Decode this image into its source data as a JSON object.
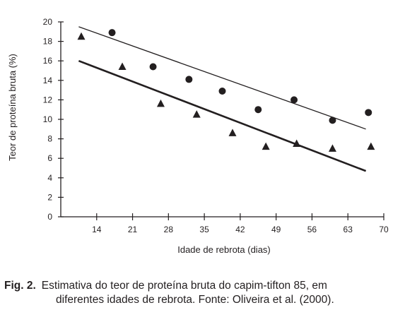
{
  "chart_data": {
    "type": "scatter",
    "xlabel": "Idade de rebrota (dias)",
    "ylabel": "Teor de proteína bruta (%)",
    "xlim": [
      7,
      70
    ],
    "ylim": [
      0,
      20
    ],
    "xticks": [
      14,
      21,
      28,
      35,
      42,
      49,
      56,
      63,
      70
    ],
    "yticks": [
      0,
      2,
      4,
      6,
      8,
      10,
      12,
      14,
      16,
      18,
      20
    ],
    "grid": false,
    "series": [
      {
        "marker": "circle",
        "points": [
          [
            17,
            18.9
          ],
          [
            25,
            15.4
          ],
          [
            32,
            14.1
          ],
          [
            38.5,
            12.9
          ],
          [
            45.5,
            11.0
          ],
          [
            52.5,
            12.0
          ],
          [
            60,
            9.9
          ],
          [
            67,
            10.7
          ]
        ],
        "trend": [
          [
            10.5,
            19.5
          ],
          [
            66.5,
            9.0
          ]
        ]
      },
      {
        "marker": "triangle",
        "points": [
          [
            11,
            18.5
          ],
          [
            19,
            15.4
          ],
          [
            26.5,
            11.6
          ],
          [
            33.5,
            10.5
          ],
          [
            40.5,
            8.6
          ],
          [
            47,
            7.2
          ],
          [
            53,
            7.5
          ],
          [
            60,
            7.0
          ],
          [
            67.5,
            7.2
          ]
        ],
        "trend": [
          [
            10.5,
            16.0
          ],
          [
            66.5,
            4.7
          ]
        ]
      }
    ]
  },
  "caption": {
    "label": "Fig. 2.",
    "line1": "Estimativa  do teor de proteína bruta do capim-tifton 85, em",
    "line2": "diferentes idades de rebrota. Fonte: Oliveira et al. (2000)."
  }
}
